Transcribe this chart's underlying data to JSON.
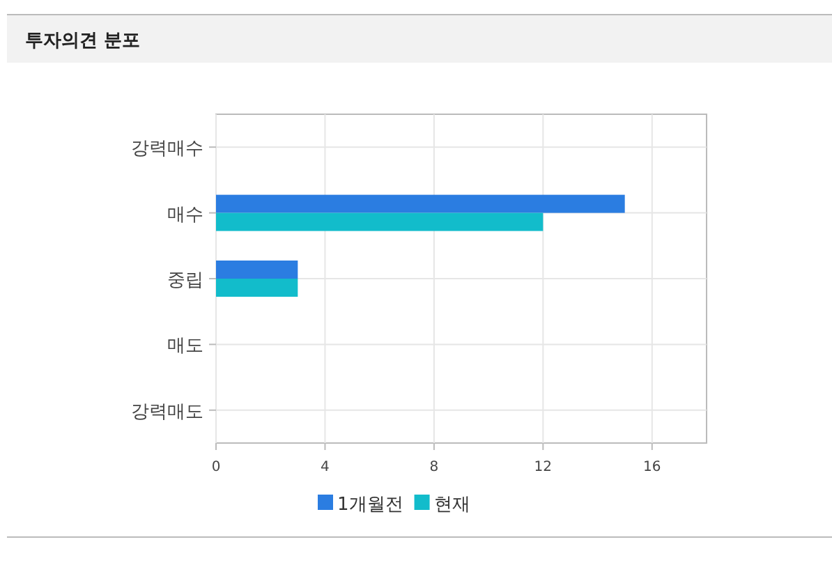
{
  "chart_data": {
    "type": "bar",
    "orientation": "horizontal",
    "title": "투자의견 분포",
    "categories": [
      "강력매수",
      "매수",
      "중립",
      "매도",
      "강력매도"
    ],
    "series": [
      {
        "name": "1개월전",
        "color": "#2b7de1",
        "values": [
          0,
          15,
          3,
          0,
          0
        ]
      },
      {
        "name": "현재",
        "color": "#12bccb",
        "values": [
          0,
          12,
          3,
          0,
          0
        ]
      }
    ],
    "xlim": [
      0,
      18
    ],
    "xticks": [
      0,
      4,
      8,
      12,
      16
    ],
    "grid": true,
    "legend": "bottom"
  }
}
